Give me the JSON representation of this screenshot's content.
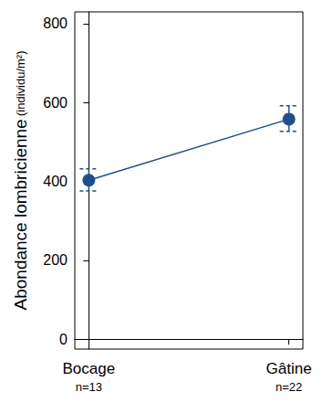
{
  "chart_data": {
    "type": "line",
    "ylabel": "Abondance lombricienne",
    "ylabel_units": "(individu/m²)",
    "categories": [
      "Bocage",
      "Gâtine"
    ],
    "n_labels": [
      "n=13",
      "n=22"
    ],
    "values": [
      403,
      558
    ],
    "error_low": [
      376,
      527
    ],
    "error_high": [
      432,
      592
    ],
    "color": "#1f4e8c",
    "marker": "circle",
    "ylim": [
      -25,
      830
    ],
    "yticks": [
      0,
      200,
      400,
      600,
      800
    ],
    "grid": false
  }
}
